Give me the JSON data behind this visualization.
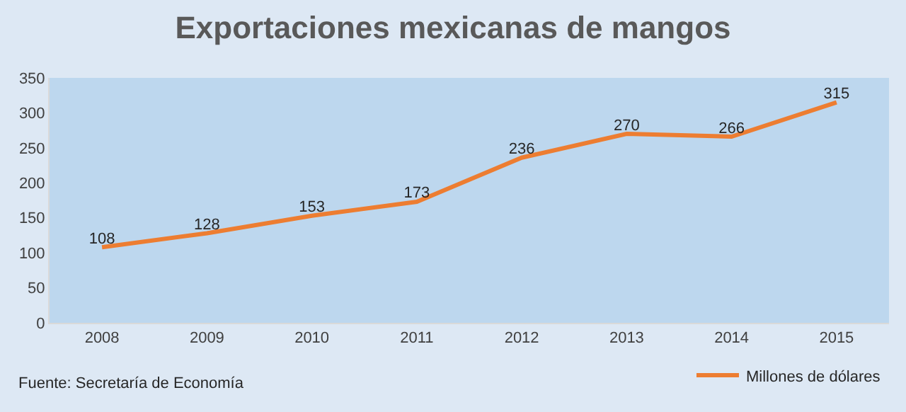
{
  "chart_data": {
    "type": "line",
    "title": "Exportaciones mexicanas de mangos",
    "categories": [
      "2008",
      "2009",
      "2010",
      "2011",
      "2012",
      "2013",
      "2014",
      "2015"
    ],
    "series": [
      {
        "name": "Millones de dólares",
        "color": "#ed7d31",
        "values": [
          108,
          128,
          153,
          173,
          236,
          270,
          266,
          315
        ]
      }
    ],
    "ylim": [
      0,
      350
    ],
    "yticks": [
      0,
      50,
      100,
      150,
      200,
      250,
      300,
      350
    ],
    "data_labels": true,
    "legend": "bottom right",
    "grid": false,
    "line_style": "solid",
    "marker": "none",
    "annotations": [
      "Fuente: Secretaría de Economía"
    ]
  }
}
